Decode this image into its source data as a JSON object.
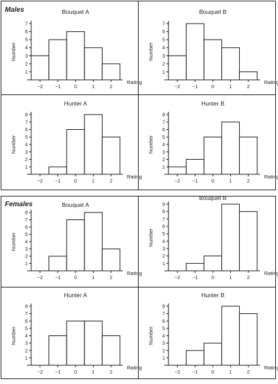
{
  "group_labels": {
    "males": "Males",
    "females": "Females"
  },
  "chart_data": [
    {
      "type": "bar",
      "group": "Males",
      "title": "Bouquet A",
      "categories": [
        "-2",
        "-1",
        "0",
        "1",
        "2"
      ],
      "values": [
        3,
        5,
        6,
        4,
        2
      ],
      "xlabel": "Rating",
      "ylabel": "Number",
      "ylim": [
        0,
        7
      ],
      "yticks": [
        1,
        2,
        3,
        4,
        5,
        6,
        7
      ],
      "xticks": [
        "−2",
        "−1",
        "0",
        "1",
        "2"
      ]
    },
    {
      "type": "bar",
      "group": "Males",
      "title": "Bouquet B",
      "categories": [
        "-2",
        "-1",
        "0",
        "1",
        "2"
      ],
      "values": [
        3,
        7,
        5,
        4,
        1
      ],
      "xlabel": "Rating",
      "ylabel": "Number",
      "ylim": [
        0,
        7
      ],
      "yticks": [
        1,
        2,
        3,
        4,
        5,
        6,
        7
      ],
      "xticks": [
        "−2",
        "−1",
        "0",
        "1",
        "2"
      ]
    },
    {
      "type": "bar",
      "group": "Males",
      "title": "Hunter A",
      "categories": [
        "-2",
        "-1",
        "0",
        "1",
        "2"
      ],
      "values": [
        0,
        1,
        6,
        8,
        5
      ],
      "xlabel": "Rating",
      "ylabel": "Number",
      "ylim": [
        0,
        8
      ],
      "yticks": [
        1,
        2,
        3,
        4,
        5,
        6,
        7,
        8
      ],
      "xticks": [
        "−2",
        "−1",
        "0",
        "1",
        "2"
      ]
    },
    {
      "type": "bar",
      "group": "Males",
      "title": "Hunter B",
      "categories": [
        "-2",
        "-1",
        "0",
        "1",
        "2"
      ],
      "values": [
        1,
        2,
        5,
        7,
        5
      ],
      "xlabel": "Rating",
      "ylabel": "Number",
      "ylim": [
        0,
        8
      ],
      "yticks": [
        1,
        2,
        3,
        4,
        5,
        6,
        7,
        8
      ],
      "xticks": [
        "−2",
        "−1",
        "0",
        "1",
        "2"
      ]
    },
    {
      "type": "bar",
      "group": "Females",
      "title": "Bouquet A",
      "categories": [
        "-2",
        "-1",
        "0",
        "1",
        "2"
      ],
      "values": [
        0,
        2,
        7,
        8,
        3
      ],
      "xlabel": "Rating",
      "ylabel": "Number",
      "ylim": [
        0,
        8
      ],
      "yticks": [
        1,
        2,
        3,
        4,
        5,
        6,
        7,
        8
      ],
      "xticks": [
        "−2",
        "−1",
        "0",
        "1",
        "2"
      ]
    },
    {
      "type": "bar",
      "group": "Females",
      "title": "Bouquet B",
      "categories": [
        "-2",
        "-1",
        "0",
        "1",
        "2"
      ],
      "values": [
        0,
        1,
        2,
        9,
        8
      ],
      "xlabel": "Rating",
      "ylabel": "Number",
      "ylim": [
        0,
        9
      ],
      "yticks": [
        1,
        2,
        3,
        4,
        5,
        6,
        7,
        8,
        9
      ],
      "xticks": [
        "−2",
        "−1",
        "0",
        "1",
        "2"
      ]
    },
    {
      "type": "bar",
      "group": "Females",
      "title": "Hunter A",
      "categories": [
        "-2",
        "-1",
        "0",
        "1",
        "2"
      ],
      "values": [
        0,
        4,
        6,
        6,
        4
      ],
      "xlabel": "Rating",
      "ylabel": "Number",
      "ylim": [
        0,
        8
      ],
      "yticks": [
        1,
        2,
        3,
        4,
        5,
        6,
        7,
        8
      ],
      "xticks": [
        "−2",
        "−1",
        "0",
        "1",
        "2"
      ]
    },
    {
      "type": "bar",
      "group": "Females",
      "title": "Hunter B",
      "categories": [
        "-2",
        "-1",
        "0",
        "1",
        "2"
      ],
      "values": [
        0,
        2,
        3,
        8,
        7
      ],
      "xlabel": "Rating",
      "ylabel": "Number",
      "ylim": [
        0,
        8
      ],
      "yticks": [
        1,
        2,
        3,
        4,
        5,
        6,
        7,
        8
      ],
      "xticks": [
        "−2",
        "−1",
        "0",
        "1",
        "2"
      ]
    }
  ]
}
